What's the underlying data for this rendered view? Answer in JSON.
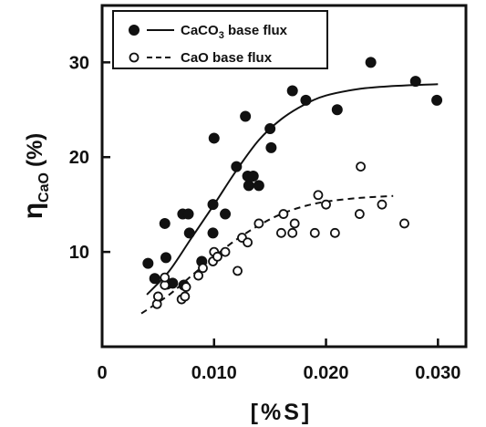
{
  "chart_data": {
    "type": "scatter",
    "xlabel": "[%S]",
    "ylabel": {
      "main": "η",
      "sub": "CaO",
      "unit": "(%)"
    },
    "xlim": [
      0,
      0.0325
    ],
    "ylim": [
      0,
      36
    ],
    "x_ticks": [
      0,
      0.01,
      0.02,
      0.03
    ],
    "x_tick_labels": [
      "0",
      "0.010",
      "0.020",
      "0.030"
    ],
    "y_ticks": [
      10,
      20,
      30
    ],
    "y_tick_labels": [
      "10",
      "20",
      "30"
    ],
    "legend_position": "top-left",
    "series": [
      {
        "name": "CaCO3 base flux",
        "name_parts": {
          "base": "CaCO",
          "sub": "3",
          "rest": " base flux"
        },
        "marker": "filled-circle",
        "line": "solid",
        "color": "#111111",
        "points": [
          [
            0.0041,
            8.8
          ],
          [
            0.0047,
            7.2
          ],
          [
            0.0056,
            13.0
          ],
          [
            0.0057,
            9.4
          ],
          [
            0.0058,
            6.6
          ],
          [
            0.0063,
            6.7
          ],
          [
            0.0072,
            14.0
          ],
          [
            0.0073,
            6.5
          ],
          [
            0.0077,
            14.0
          ],
          [
            0.0078,
            12.0
          ],
          [
            0.0089,
            9.0
          ],
          [
            0.0099,
            15.0
          ],
          [
            0.0099,
            12.0
          ],
          [
            0.01,
            22.0
          ],
          [
            0.011,
            14.0
          ],
          [
            0.012,
            19.0
          ],
          [
            0.0128,
            24.3
          ],
          [
            0.013,
            18.0
          ],
          [
            0.0131,
            17.0
          ],
          [
            0.0135,
            18.0
          ],
          [
            0.014,
            17.0
          ],
          [
            0.015,
            23.0
          ],
          [
            0.0151,
            21.0
          ],
          [
            0.017,
            27.0
          ],
          [
            0.0182,
            26.0
          ],
          [
            0.021,
            25.0
          ],
          [
            0.024,
            30.0
          ],
          [
            0.028,
            28.0
          ],
          [
            0.0299,
            26.0
          ]
        ],
        "curve": [
          [
            0.004,
            5.5
          ],
          [
            0.006,
            8.0
          ],
          [
            0.008,
            11.5
          ],
          [
            0.01,
            15.0
          ],
          [
            0.012,
            18.6
          ],
          [
            0.014,
            21.8
          ],
          [
            0.016,
            24.0
          ],
          [
            0.018,
            25.5
          ],
          [
            0.02,
            26.5
          ],
          [
            0.023,
            27.2
          ],
          [
            0.026,
            27.5
          ],
          [
            0.03,
            27.7
          ]
        ]
      },
      {
        "name": "CaO base flux",
        "name_parts": {
          "base": "CaO base flux",
          "sub": "",
          "rest": ""
        },
        "marker": "open-circle",
        "line": "dashed",
        "color": "#111111",
        "points": [
          [
            0.0049,
            4.5
          ],
          [
            0.005,
            5.3
          ],
          [
            0.0056,
            6.5
          ],
          [
            0.0056,
            7.3
          ],
          [
            0.0071,
            5.0
          ],
          [
            0.0074,
            5.3
          ],
          [
            0.0075,
            6.3
          ],
          [
            0.0086,
            7.5
          ],
          [
            0.009,
            8.3
          ],
          [
            0.0099,
            9.0
          ],
          [
            0.01,
            10.0
          ],
          [
            0.0103,
            9.5
          ],
          [
            0.011,
            10.0
          ],
          [
            0.0121,
            8.0
          ],
          [
            0.0125,
            11.5
          ],
          [
            0.013,
            11.0
          ],
          [
            0.014,
            13.0
          ],
          [
            0.016,
            12.0
          ],
          [
            0.0162,
            14.0
          ],
          [
            0.017,
            12.0
          ],
          [
            0.0172,
            13.0
          ],
          [
            0.019,
            12.0
          ],
          [
            0.0193,
            16.0
          ],
          [
            0.02,
            15.0
          ],
          [
            0.0208,
            12.0
          ],
          [
            0.023,
            14.0
          ],
          [
            0.0231,
            19.0
          ],
          [
            0.025,
            15.0
          ],
          [
            0.027,
            13.0
          ]
        ],
        "curve": [
          [
            0.0035,
            3.5
          ],
          [
            0.006,
            5.5
          ],
          [
            0.008,
            7.5
          ],
          [
            0.01,
            9.5
          ],
          [
            0.012,
            11.3
          ],
          [
            0.014,
            12.8
          ],
          [
            0.016,
            14.0
          ],
          [
            0.018,
            14.8
          ],
          [
            0.02,
            15.3
          ],
          [
            0.023,
            15.7
          ],
          [
            0.026,
            15.9
          ]
        ]
      }
    ]
  }
}
